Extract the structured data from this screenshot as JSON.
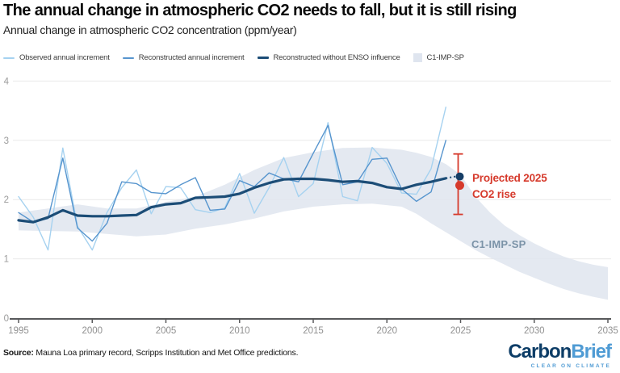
{
  "header": {
    "title": "The annual change in atmospheric CO2 needs to fall, but it is still rising",
    "subtitle": "Annual change in atmospheric CO2 concentration (ppm/year)"
  },
  "legend": {
    "items": [
      {
        "label": "Observed annual increment",
        "swatch": "thin-line",
        "color": "#a6d2f0"
      },
      {
        "label": "Reconstructed annual increment",
        "swatch": "thin-line",
        "color": "#5795ce"
      },
      {
        "label": "Reconstructed without ENSO influence",
        "swatch": "thick-line",
        "color": "#1c4d77"
      },
      {
        "label": "C1-IMP-SP",
        "swatch": "box",
        "color": "#dfe5ef"
      }
    ]
  },
  "chart_data": {
    "type": "line",
    "title": "Annual change in atmospheric CO2 concentration (ppm/year)",
    "xlabel": "",
    "ylabel": "",
    "x_range": [
      1995,
      2035
    ],
    "y_range": [
      0,
      4
    ],
    "x_ticks": [
      1995,
      2000,
      2005,
      2010,
      2015,
      2020,
      2025,
      2030,
      2035
    ],
    "y_ticks": [
      0,
      1,
      2,
      3,
      4
    ],
    "grid": "horizontal",
    "legend_position": "top",
    "years": [
      1995,
      1996,
      1997,
      1998,
      1999,
      2000,
      2001,
      2002,
      2003,
      2004,
      2005,
      2006,
      2007,
      2008,
      2009,
      2010,
      2011,
      2012,
      2013,
      2014,
      2015,
      2016,
      2017,
      2018,
      2019,
      2020,
      2021,
      2022,
      2023,
      2024
    ],
    "series": [
      {
        "name": "Observed annual increment",
        "color": "#a6d2f0",
        "width": 1.4,
        "values": [
          2.05,
          1.7,
          1.15,
          2.87,
          1.55,
          1.15,
          1.78,
          2.2,
          2.5,
          1.76,
          2.22,
          2.2,
          1.83,
          1.78,
          1.86,
          2.44,
          1.77,
          2.2,
          2.71,
          2.05,
          2.27,
          3.3,
          2.05,
          1.98,
          2.88,
          2.61,
          2.11,
          2.09,
          2.52,
          3.56
        ]
      },
      {
        "name": "Reconstructed annual increment",
        "color": "#5795ce",
        "width": 1.4,
        "values": [
          1.78,
          1.62,
          1.68,
          2.7,
          1.52,
          1.3,
          1.6,
          2.3,
          2.27,
          2.12,
          2.1,
          2.25,
          2.37,
          1.82,
          1.84,
          2.32,
          2.22,
          2.45,
          2.35,
          2.3,
          2.78,
          3.25,
          2.25,
          2.3,
          2.68,
          2.7,
          2.18,
          1.97,
          2.13,
          3.0
        ]
      },
      {
        "name": "Reconstructed without ENSO influence",
        "color": "#1c4d77",
        "width": 3.2,
        "values": [
          1.65,
          1.62,
          1.7,
          1.82,
          1.73,
          1.72,
          1.72,
          1.73,
          1.74,
          1.87,
          1.92,
          1.94,
          2.03,
          2.04,
          2.05,
          2.1,
          2.2,
          2.28,
          2.34,
          2.35,
          2.35,
          2.33,
          2.3,
          2.31,
          2.28,
          2.21,
          2.18,
          2.25,
          2.3,
          2.36
        ]
      }
    ],
    "band": {
      "name": "C1-IMP-SP",
      "color": "#dfe5ef",
      "x": [
        1995,
        1997,
        1999,
        2001,
        2003,
        2005,
        2007,
        2009,
        2011,
        2013,
        2015,
        2017,
        2019,
        2021,
        2022,
        2023,
        2024,
        2025,
        2026,
        2027,
        2028,
        2029,
        2030,
        2031,
        2032,
        2033,
        2034,
        2035
      ],
      "top": [
        1.78,
        1.85,
        1.92,
        1.85,
        1.85,
        1.96,
        2.05,
        2.25,
        2.5,
        2.7,
        2.8,
        2.87,
        2.88,
        2.84,
        2.79,
        2.72,
        2.6,
        2.42,
        2.05,
        1.78,
        1.56,
        1.4,
        1.26,
        1.14,
        1.04,
        0.96,
        0.9,
        0.86
      ],
      "bottom": [
        1.48,
        1.47,
        1.46,
        1.42,
        1.38,
        1.41,
        1.51,
        1.58,
        1.68,
        1.8,
        1.88,
        1.92,
        1.93,
        1.88,
        1.76,
        1.6,
        1.45,
        1.3,
        1.15,
        1.02,
        0.9,
        0.78,
        0.68,
        0.58,
        0.49,
        0.42,
        0.36,
        0.31
      ]
    },
    "projection": {
      "year": 2025,
      "connector_from_year": 2024,
      "connector_from_value": 2.36,
      "without_enso_dot": 2.39,
      "forecast_dot": 2.24,
      "range_low": 1.75,
      "range_high": 2.77,
      "dot_navy_color": "#163e66",
      "accent_color": "#d63a2c"
    }
  },
  "annotations": {
    "projected_line1": "Projected 2025",
    "projected_line2": "CO2 rise",
    "band_label": "C1-IMP-SP"
  },
  "footer": {
    "source_label": "Source:",
    "source_text": " Mauna Loa primary record, Scripps Institution and Met Office predictions."
  },
  "logo": {
    "part1": "Carbon",
    "part2": "Brief",
    "tagline": "CLEAR ON CLIMATE",
    "part1_color": "#0d3d67",
    "part2_color": "#4f9bd4"
  }
}
